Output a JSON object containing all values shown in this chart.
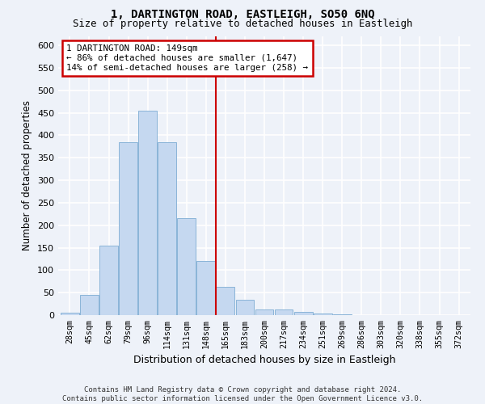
{
  "title": "1, DARTINGTON ROAD, EASTLEIGH, SO50 6NQ",
  "subtitle": "Size of property relative to detached houses in Eastleigh",
  "xlabel": "Distribution of detached houses by size in Eastleigh",
  "ylabel": "Number of detached properties",
  "bar_color": "#c5d8f0",
  "bar_edge_color": "#8ab4d8",
  "bg_color": "#eef2f9",
  "grid_color": "#ffffff",
  "categories": [
    "28sqm",
    "45sqm",
    "62sqm",
    "79sqm",
    "96sqm",
    "114sqm",
    "131sqm",
    "148sqm",
    "165sqm",
    "183sqm",
    "200sqm",
    "217sqm",
    "234sqm",
    "251sqm",
    "269sqm",
    "286sqm",
    "303sqm",
    "320sqm",
    "338sqm",
    "355sqm",
    "372sqm"
  ],
  "values": [
    5,
    45,
    155,
    385,
    455,
    385,
    215,
    120,
    63,
    35,
    13,
    12,
    7,
    3,
    1,
    0,
    0,
    0,
    0,
    0,
    0
  ],
  "property_line_label": "1 DARTINGTON ROAD: 149sqm",
  "annotation_line1": "← 86% of detached houses are smaller (1,647)",
  "annotation_line2": "14% of semi-detached houses are larger (258) →",
  "annotation_box_color": "#ffffff",
  "annotation_border_color": "#cc0000",
  "vline_color": "#cc0000",
  "ylim": [
    0,
    620
  ],
  "yticks": [
    0,
    50,
    100,
    150,
    200,
    250,
    300,
    350,
    400,
    450,
    500,
    550,
    600
  ],
  "footnote1": "Contains HM Land Registry data © Crown copyright and database right 2024.",
  "footnote2": "Contains public sector information licensed under the Open Government Licence v3.0."
}
